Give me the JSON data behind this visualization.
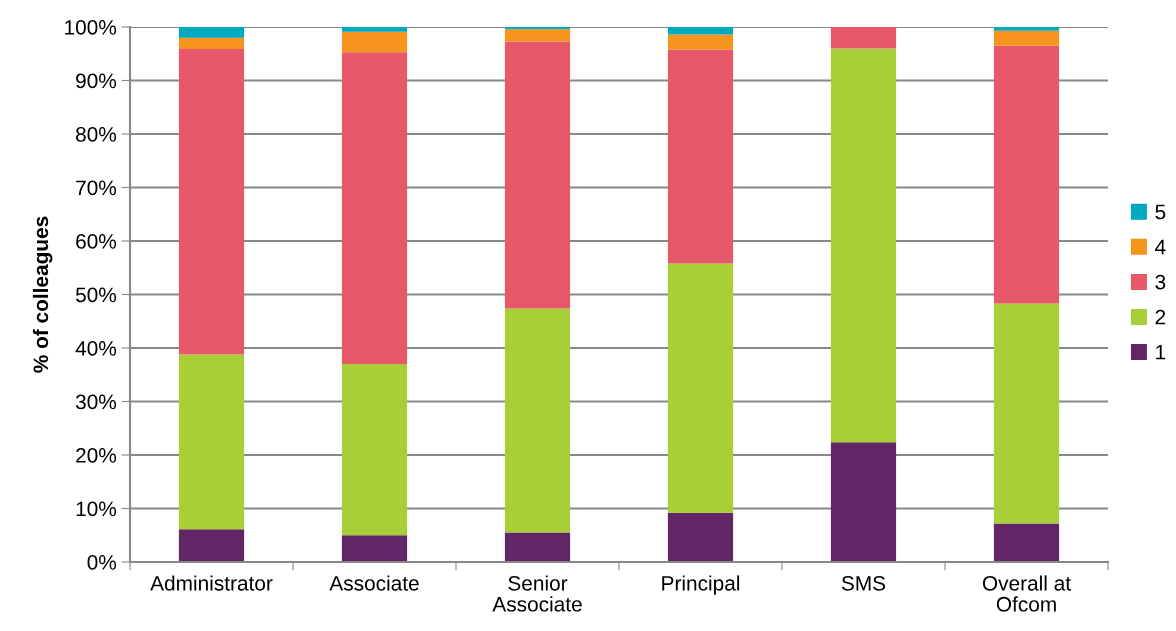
{
  "chart_data": {
    "type": "bar",
    "stacked": true,
    "ylabel": "% of colleagues",
    "categories": [
      "Administrator",
      "Associate",
      "Senior\nAssociate",
      "Principal",
      "SMS",
      "Overall at\nOfcom"
    ],
    "series": [
      {
        "name": "1",
        "color": "#622565",
        "values": [
          6.1,
          5.0,
          5.5,
          9.2,
          22.4,
          7.2
        ]
      },
      {
        "name": "2",
        "color": "#a9cf38",
        "values": [
          32.7,
          32.0,
          41.9,
          46.6,
          73.6,
          41.1
        ]
      },
      {
        "name": "3",
        "color": "#e6586a",
        "values": [
          57.1,
          58.3,
          49.9,
          40.0,
          4.0,
          48.2
        ]
      },
      {
        "name": "4",
        "color": "#f7941e",
        "values": [
          2.1,
          3.8,
          2.3,
          2.8,
          0,
          2.8
        ]
      },
      {
        "name": "5",
        "color": "#00a9bf",
        "values": [
          2.0,
          0.9,
          0.4,
          1.4,
          0,
          0.7
        ]
      }
    ],
    "ylim": [
      0,
      100
    ],
    "yticks": [
      {
        "value": 0,
        "label": "0%"
      },
      {
        "value": 10,
        "label": "10%"
      },
      {
        "value": 20,
        "label": "20%"
      },
      {
        "value": 30,
        "label": "30%"
      },
      {
        "value": 40,
        "label": "40%"
      },
      {
        "value": 50,
        "label": "50%"
      },
      {
        "value": 60,
        "label": "60%"
      },
      {
        "value": 70,
        "label": "70%"
      },
      {
        "value": 80,
        "label": "80%"
      },
      {
        "value": 90,
        "label": "90%"
      },
      {
        "value": 100,
        "label": "100%"
      }
    ],
    "grid": "y",
    "legend": "right"
  }
}
